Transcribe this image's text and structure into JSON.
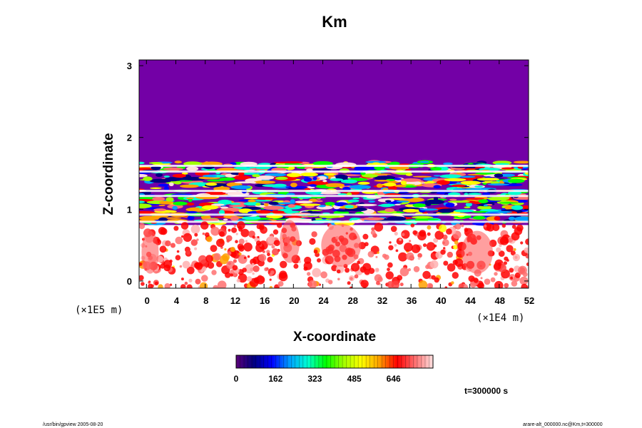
{
  "chart_data": {
    "type": "heatmap",
    "title": "Km",
    "xlabel": "X-coordinate",
    "ylabel": "Z-coordinate",
    "x_scale_label": "(×1E4 m)",
    "y_scale_label": "(×1E5 m)",
    "xlim": [
      -1,
      52
    ],
    "ylim": [
      -0.1,
      3.08
    ],
    "x_ticks": [
      "0",
      "4",
      "8",
      "12",
      "16",
      "20",
      "24",
      "28",
      "32",
      "36",
      "40",
      "44",
      "48",
      "52"
    ],
    "y_ticks": [
      "0",
      "1",
      "2",
      "3"
    ],
    "colorbar": {
      "ticks": [
        "0",
        "162",
        "323",
        "485",
        "646"
      ],
      "range": [
        0,
        808
      ],
      "colors": [
        "#5a0078",
        "#000080",
        "#0000ff",
        "#00a0ff",
        "#00ffd0",
        "#00ff00",
        "#a0ff00",
        "#ffff00",
        "#ffa000",
        "#ff0000",
        "#ff7070",
        "#ffe0e0"
      ]
    },
    "regions": [
      {
        "z_min": 1.6,
        "z_max": 3.08,
        "description_value": 0
      },
      {
        "z_min": 0.75,
        "z_max": 1.6,
        "description_value": "mixed"
      },
      {
        "z_min": -0.1,
        "z_max": 0.75,
        "description_value": "high"
      }
    ],
    "background_value_color": "#7300a6"
  },
  "annotations": {
    "time": "t=300000 s",
    "footer_left": "/usr/bin/gpview 2005-08-20",
    "footer_right": "arare-alt_000000.nc@Km,t=300000"
  }
}
